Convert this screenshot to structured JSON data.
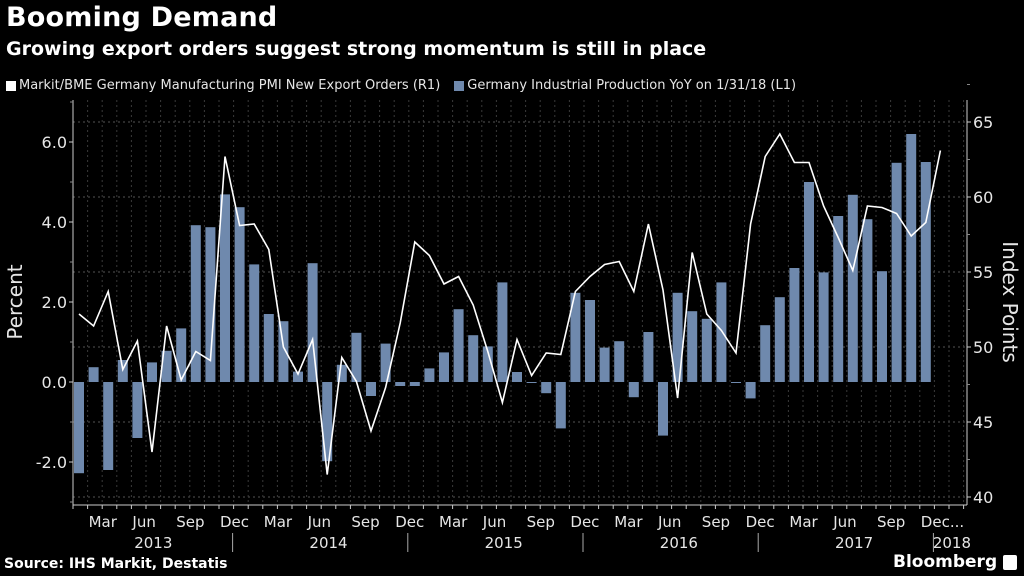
{
  "header": {
    "title": "Booming Demand",
    "subtitle": "Growing export orders suggest strong momentum is still in place"
  },
  "footer": {
    "source": "Source: IHS Markit, Destatis",
    "brand": "Bloomberg"
  },
  "colors": {
    "background": "#000000",
    "line": "#ffffff",
    "bars": "#6f89ad",
    "grid": "#555555",
    "text": "#e6e6e6"
  },
  "chart_data": {
    "type": "bar+line",
    "title": "Booming Demand",
    "subtitle": "Growing export orders suggest strong momentum is still in place",
    "legend": [
      {
        "name": "Markit/BME Germany Manufacturing PMI New Export Orders (R1)",
        "color": "#ffffff",
        "kind": "line"
      },
      {
        "name": "Germany Industrial Production YoY on 1/31/18 (L1)",
        "color": "#6f89ad",
        "kind": "bar"
      }
    ],
    "legend_position": "top-left",
    "grid": true,
    "left_axis": {
      "label": "Percent",
      "range": [
        -3.0,
        7.0
      ],
      "ticks": [
        -2.0,
        0.0,
        2.0,
        4.0,
        6.0
      ],
      "tick_labels": [
        "-2.0",
        "0.0",
        "2.0",
        "4.0",
        "6.0"
      ]
    },
    "right_axis": {
      "label": "Index Points",
      "range": [
        39.67,
        67.67
      ],
      "ticks": [
        40,
        45,
        50,
        55,
        60,
        65
      ],
      "tick_labels": [
        "40",
        "45",
        "50",
        "55",
        "60",
        "65"
      ]
    },
    "x_axis": {
      "month_labels": [
        {
          "label": "Mar",
          "index": 1
        },
        {
          "label": "Jun",
          "index": 4
        },
        {
          "label": "Sep",
          "index": 7
        },
        {
          "label": "Dec",
          "index": 10
        },
        {
          "label": "Mar",
          "index": 13
        },
        {
          "label": "Jun",
          "index": 16
        },
        {
          "label": "Sep",
          "index": 19
        },
        {
          "label": "Dec",
          "index": 22
        },
        {
          "label": "Mar",
          "index": 25
        },
        {
          "label": "Jun",
          "index": 28
        },
        {
          "label": "Sep",
          "index": 31
        },
        {
          "label": "Dec",
          "index": 34
        },
        {
          "label": "Mar",
          "index": 37
        },
        {
          "label": "Jun",
          "index": 40
        },
        {
          "label": "Sep",
          "index": 43
        },
        {
          "label": "Dec",
          "index": 46
        },
        {
          "label": "Mar",
          "index": 49
        },
        {
          "label": "Jun",
          "index": 52
        },
        {
          "label": "Sep",
          "index": 55
        },
        {
          "label": "Dec...",
          "index": 58
        }
      ],
      "year_labels": [
        {
          "label": "2013",
          "center": 5.5
        },
        {
          "label": "2014",
          "center": 17.5
        },
        {
          "label": "2015",
          "center": 29.5
        },
        {
          "label": "2016",
          "center": 41.5
        },
        {
          "label": "2017",
          "center": 53.5
        },
        {
          "label": "2018",
          "center": 60.2
        }
      ],
      "year_dividers": [
        11,
        23,
        35,
        47,
        59
      ],
      "n_slots": 61
    },
    "series": [
      {
        "name": "Germany Industrial Production YoY on 1/31/18 (L1)",
        "type": "bar",
        "axis": "left",
        "values": [
          -2.28,
          0.37,
          -2.2,
          0.55,
          -1.4,
          0.49,
          0.78,
          1.34,
          3.92,
          3.87,
          4.69,
          4.37,
          2.94,
          1.7,
          1.52,
          0.26,
          2.97,
          -1.98,
          0.43,
          1.23,
          -0.35,
          0.96,
          -0.1,
          -0.1,
          0.34,
          0.74,
          1.82,
          1.17,
          0.89,
          2.49,
          0.25,
          -0.02,
          -0.28,
          -1.16,
          2.23,
          2.05,
          0.86,
          1.02,
          -0.38,
          1.25,
          -1.34,
          2.23,
          1.77,
          1.58,
          2.49,
          -0.02,
          -0.41,
          1.42,
          2.12,
          2.85,
          5.0,
          2.74,
          4.15,
          4.68,
          4.07,
          2.77,
          5.48,
          6.2,
          5.5
        ]
      },
      {
        "name": "Markit/BME Germany Manufacturing PMI New Export Orders (R1)",
        "type": "line",
        "axis": "right",
        "values": [
          52.2,
          51.4,
          53.7,
          48.5,
          50.4,
          43.0,
          51.4,
          47.8,
          49.7,
          49.1,
          62.7,
          58.1,
          58.2,
          56.5,
          50.0,
          48.2,
          50.5,
          41.5,
          49.3,
          47.7,
          44.4,
          47.3,
          51.6,
          57.0,
          56.1,
          54.2,
          54.7,
          52.8,
          49.7,
          46.3,
          50.5,
          48.1,
          49.6,
          49.5,
          53.7,
          54.7,
          55.5,
          55.7,
          53.7,
          58.2,
          53.8,
          46.6,
          56.3,
          52.2,
          51.1,
          49.6,
          58.2,
          62.7,
          64.2,
          62.3,
          62.3,
          59.4,
          57.3,
          55.1,
          59.4,
          59.3,
          58.9,
          57.4,
          58.3,
          63.1
        ]
      }
    ]
  }
}
